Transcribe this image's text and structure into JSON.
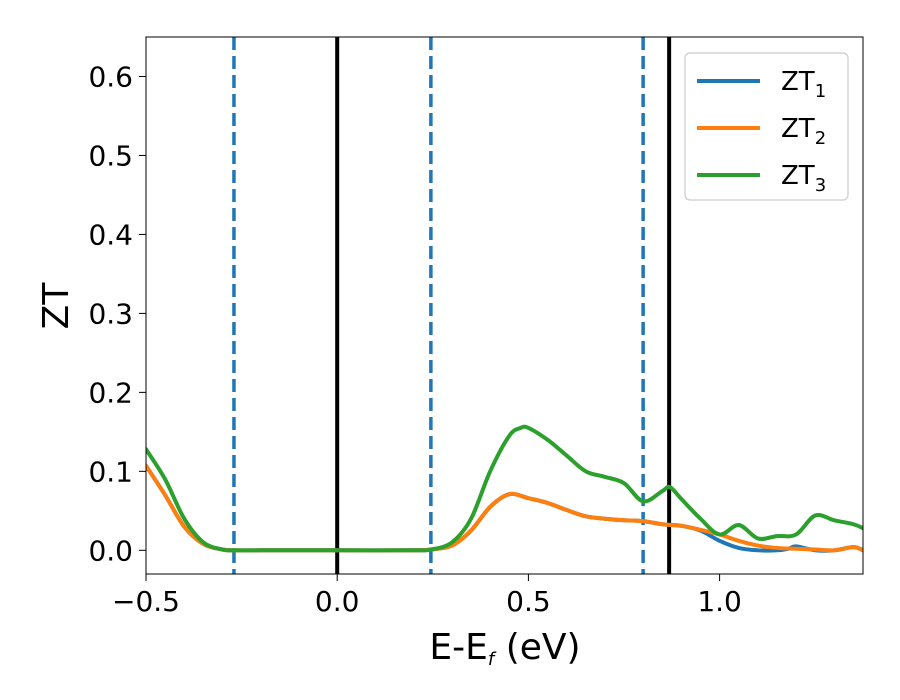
{
  "chart_data": {
    "type": "line",
    "title": "",
    "xlabel_main": "E-E",
    "xlabel_sub": "f",
    "xlabel_unit": " (eV)",
    "ylabel": "ZT",
    "xlim": [
      -0.5,
      1.375
    ],
    "ylim": [
      -0.03,
      0.65
    ],
    "x_ticks": [
      -0.5,
      0.0,
      0.5,
      1.0
    ],
    "x_tick_labels": [
      "−0.5",
      "0.0",
      "0.5",
      "1.0"
    ],
    "y_ticks": [
      0.0,
      0.1,
      0.2,
      0.3,
      0.4,
      0.5,
      0.6
    ],
    "y_tick_labels": [
      "0.0",
      "0.1",
      "0.2",
      "0.3",
      "0.4",
      "0.5",
      "0.6"
    ],
    "grid": false,
    "legend_position": "top-right",
    "vertical_lines": [
      {
        "x": -0.27,
        "style": "dashed",
        "color": "#1f77b4"
      },
      {
        "x": 0.0,
        "style": "solid",
        "color": "#000000"
      },
      {
        "x": 0.245,
        "style": "dashed",
        "color": "#1f77b4"
      },
      {
        "x": 0.8,
        "style": "dashed",
        "color": "#1f77b4"
      },
      {
        "x": 0.868,
        "style": "solid",
        "color": "#000000"
      }
    ],
    "series": [
      {
        "name": "ZT",
        "name_sub": "1",
        "color": "#1f77b4",
        "x": [
          -0.5,
          -0.45,
          -0.4,
          -0.35,
          -0.3,
          -0.27,
          -0.2,
          0.0,
          0.2,
          0.245,
          0.3,
          0.35,
          0.4,
          0.45,
          0.5,
          0.55,
          0.6,
          0.65,
          0.7,
          0.75,
          0.8,
          0.85,
          0.9,
          0.95,
          1.0,
          1.05,
          1.1,
          1.15,
          1.18,
          1.2,
          1.25,
          1.3,
          1.35,
          1.375
        ],
        "y": [
          0.107,
          0.07,
          0.03,
          0.008,
          0.001,
          0.0,
          0.0,
          0.0,
          0.0,
          0.001,
          0.006,
          0.025,
          0.055,
          0.071,
          0.066,
          0.06,
          0.051,
          0.043,
          0.04,
          0.038,
          0.037,
          0.033,
          0.031,
          0.025,
          0.012,
          0.003,
          0.0,
          0.0,
          0.002,
          0.005,
          0.0,
          0.0,
          0.004,
          0.0
        ]
      },
      {
        "name": "ZT",
        "name_sub": "2",
        "color": "#ff7f0e",
        "x": [
          -0.5,
          -0.45,
          -0.4,
          -0.35,
          -0.3,
          -0.27,
          -0.2,
          0.0,
          0.2,
          0.245,
          0.3,
          0.35,
          0.4,
          0.45,
          0.5,
          0.55,
          0.6,
          0.65,
          0.7,
          0.75,
          0.8,
          0.85,
          0.9,
          0.95,
          1.0,
          1.05,
          1.1,
          1.15,
          1.2,
          1.25,
          1.3,
          1.35,
          1.375
        ],
        "y": [
          0.107,
          0.07,
          0.03,
          0.008,
          0.001,
          0.0,
          0.0,
          0.0,
          0.0,
          0.001,
          0.006,
          0.025,
          0.055,
          0.071,
          0.066,
          0.06,
          0.051,
          0.043,
          0.04,
          0.038,
          0.037,
          0.033,
          0.031,
          0.026,
          0.02,
          0.012,
          0.006,
          0.003,
          0.002,
          0.001,
          0.0,
          0.004,
          0.0
        ]
      },
      {
        "name": "ZT",
        "name_sub": "3",
        "color": "#2ca02c",
        "x": [
          -0.5,
          -0.45,
          -0.4,
          -0.35,
          -0.3,
          -0.27,
          -0.2,
          0.0,
          0.2,
          0.245,
          0.3,
          0.35,
          0.4,
          0.45,
          0.48,
          0.5,
          0.55,
          0.6,
          0.65,
          0.7,
          0.75,
          0.8,
          0.85,
          0.87,
          0.9,
          0.95,
          1.0,
          1.05,
          1.1,
          1.15,
          1.2,
          1.25,
          1.3,
          1.35,
          1.375
        ],
        "y": [
          0.128,
          0.09,
          0.04,
          0.01,
          0.001,
          0.0,
          0.0,
          0.0,
          0.0,
          0.001,
          0.01,
          0.04,
          0.1,
          0.145,
          0.155,
          0.155,
          0.14,
          0.12,
          0.1,
          0.093,
          0.085,
          0.062,
          0.075,
          0.08,
          0.065,
          0.04,
          0.02,
          0.032,
          0.015,
          0.018,
          0.02,
          0.044,
          0.038,
          0.033,
          0.028
        ]
      }
    ]
  }
}
